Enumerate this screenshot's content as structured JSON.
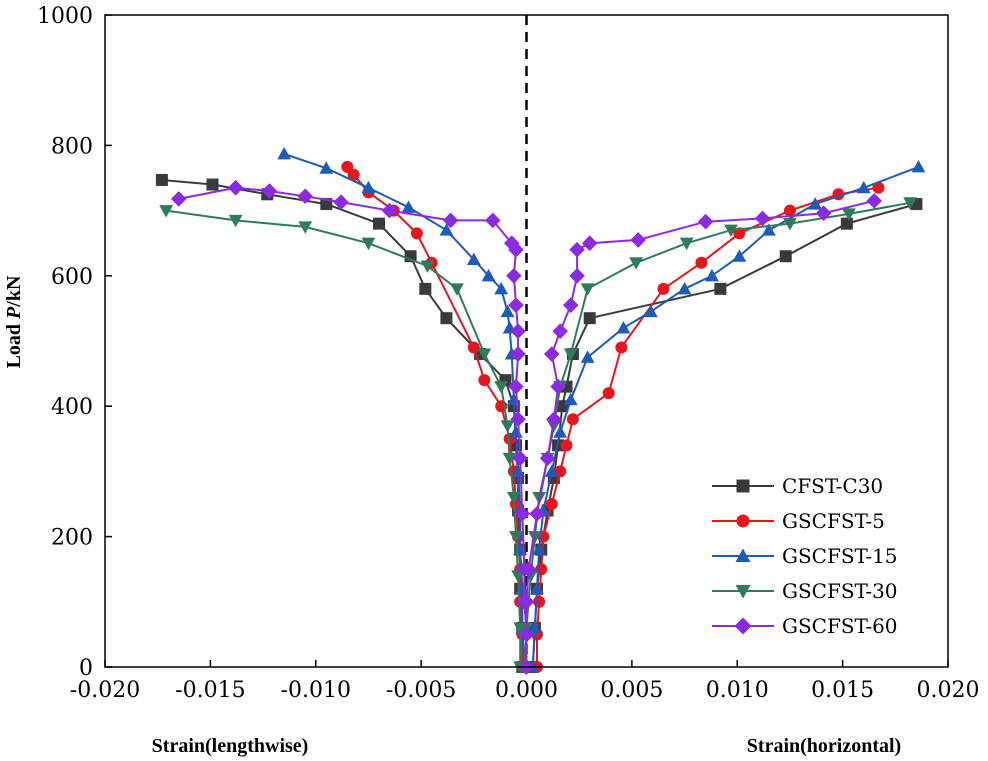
{
  "chart_data": {
    "type": "line",
    "title": "",
    "ylabel_prefix": "Load ",
    "ylabel_var": "P",
    "ylabel_suffix": "/kN",
    "xlabel_left": "Strain(lengthwise)",
    "xlabel_right": "Strain(horizontal)",
    "xlim": [
      -0.02,
      0.02
    ],
    "ylim": [
      0,
      1000
    ],
    "xticks": [
      -0.02,
      -0.015,
      -0.01,
      -0.005,
      0.0,
      0.005,
      0.01,
      0.015,
      0.02
    ],
    "xtick_labels": [
      "-0.020",
      "-0.015",
      "-0.010",
      "-0.005",
      "0.000",
      "0.005",
      "0.010",
      "0.015",
      "0.020"
    ],
    "yticks": [
      0,
      200,
      400,
      600,
      800,
      1000
    ],
    "ytick_labels": [
      "0",
      "200",
      "400",
      "600",
      "800",
      "1000"
    ],
    "reference_line": {
      "x": 0,
      "style": "dashed"
    },
    "legend_position": "bottom-right",
    "series": [
      {
        "name": "CFST-C30",
        "color": "#3a3a3a",
        "marker": "square",
        "left": [
          [
            -0.0002,
            0
          ],
          [
            -0.0002,
            60
          ],
          [
            -0.0003,
            120
          ],
          [
            -0.0003,
            180
          ],
          [
            -0.0004,
            240
          ],
          [
            -0.0004,
            290
          ],
          [
            -0.0005,
            340
          ],
          [
            -0.0006,
            400
          ],
          [
            -0.001,
            440
          ],
          [
            -0.0022,
            480
          ],
          [
            -0.0038,
            535
          ],
          [
            -0.0048,
            580
          ],
          [
            -0.0055,
            630
          ],
          [
            -0.007,
            680
          ],
          [
            -0.0095,
            710
          ],
          [
            -0.0123,
            725
          ],
          [
            -0.0149,
            740
          ],
          [
            -0.0173,
            747
          ]
        ],
        "right": [
          [
            0.0003,
            0
          ],
          [
            0.0004,
            60
          ],
          [
            0.0005,
            120
          ],
          [
            0.0007,
            180
          ],
          [
            0.001,
            240
          ],
          [
            0.0013,
            290
          ],
          [
            0.0015,
            340
          ],
          [
            0.0017,
            400
          ],
          [
            0.0019,
            430
          ],
          [
            0.0022,
            480
          ],
          [
            0.003,
            535
          ],
          [
            0.0092,
            580
          ],
          [
            0.0123,
            630
          ],
          [
            0.0152,
            680
          ],
          [
            0.0185,
            710
          ]
        ]
      },
      {
        "name": "GSCFST-5",
        "color": "#e8141e",
        "marker": "circle",
        "left": [
          [
            -0.0002,
            0
          ],
          [
            -0.0002,
            50
          ],
          [
            -0.0003,
            100
          ],
          [
            -0.0003,
            150
          ],
          [
            -0.0004,
            200
          ],
          [
            -0.0005,
            250
          ],
          [
            -0.0006,
            300
          ],
          [
            -0.0008,
            350
          ],
          [
            -0.0012,
            400
          ],
          [
            -0.002,
            440
          ],
          [
            -0.0025,
            490
          ],
          [
            -0.0045,
            620
          ],
          [
            -0.0052,
            665
          ],
          [
            -0.0063,
            700
          ],
          [
            -0.0075,
            728
          ],
          [
            -0.0082,
            755
          ],
          [
            -0.0085,
            767
          ]
        ],
        "right": [
          [
            0.0005,
            0
          ],
          [
            0.0005,
            50
          ],
          [
            0.0006,
            100
          ],
          [
            0.0007,
            150
          ],
          [
            0.0008,
            200
          ],
          [
            0.0012,
            250
          ],
          [
            0.0016,
            300
          ],
          [
            0.0019,
            340
          ],
          [
            0.0022,
            380
          ],
          [
            0.0039,
            420
          ],
          [
            0.0045,
            490
          ],
          [
            0.0065,
            580
          ],
          [
            0.0083,
            620
          ],
          [
            0.0101,
            665
          ],
          [
            0.0125,
            700
          ],
          [
            0.0148,
            725
          ],
          [
            0.0167,
            735
          ]
        ]
      },
      {
        "name": "GSCFST-15",
        "color": "#1e5ab8",
        "marker": "triangle",
        "left": [
          [
            -0.0001,
            0
          ],
          [
            -0.0002,
            60
          ],
          [
            -0.0002,
            120
          ],
          [
            -0.0003,
            180
          ],
          [
            -0.0003,
            240
          ],
          [
            -0.0004,
            300
          ],
          [
            -0.0005,
            360
          ],
          [
            -0.0006,
            410
          ],
          [
            -0.0007,
            480
          ],
          [
            -0.0008,
            520
          ],
          [
            -0.0009,
            545
          ],
          [
            -0.0012,
            580
          ],
          [
            -0.0018,
            600
          ],
          [
            -0.0025,
            625
          ],
          [
            -0.0038,
            670
          ],
          [
            -0.0056,
            705
          ],
          [
            -0.0075,
            735
          ],
          [
            -0.0095,
            765
          ],
          [
            -0.0115,
            787
          ]
        ],
        "right": [
          [
            0.0003,
            0
          ],
          [
            0.0004,
            60
          ],
          [
            0.0005,
            120
          ],
          [
            0.0006,
            180
          ],
          [
            0.0008,
            240
          ],
          [
            0.0012,
            300
          ],
          [
            0.0016,
            360
          ],
          [
            0.0021,
            410
          ],
          [
            0.0029,
            475
          ],
          [
            0.0046,
            520
          ],
          [
            0.0059,
            545
          ],
          [
            0.0075,
            580
          ],
          [
            0.0088,
            600
          ],
          [
            0.0101,
            630
          ],
          [
            0.0115,
            670
          ],
          [
            0.0137,
            710
          ],
          [
            0.016,
            735
          ],
          [
            0.0186,
            767
          ]
        ]
      },
      {
        "name": "GSCFST-30",
        "color": "#2f7a5a",
        "marker": "triangle-down",
        "left": [
          [
            -0.0003,
            0
          ],
          [
            -0.0003,
            60
          ],
          [
            -0.0004,
            140
          ],
          [
            -0.0005,
            200
          ],
          [
            -0.0006,
            260
          ],
          [
            -0.0008,
            320
          ],
          [
            -0.0009,
            370
          ],
          [
            -0.0012,
            430
          ],
          [
            -0.002,
            480
          ],
          [
            -0.0033,
            580
          ],
          [
            -0.0047,
            615
          ],
          [
            -0.0075,
            650
          ],
          [
            -0.0105,
            675
          ],
          [
            -0.0138,
            685
          ],
          [
            -0.0171,
            700
          ]
        ],
        "right": [
          [
            -0.0001,
            0
          ],
          [
            0.0,
            60
          ],
          [
            0.0002,
            140
          ],
          [
            0.0004,
            200
          ],
          [
            0.0006,
            260
          ],
          [
            0.001,
            320
          ],
          [
            0.0013,
            370
          ],
          [
            0.0016,
            430
          ],
          [
            0.0021,
            480
          ],
          [
            0.0029,
            580
          ],
          [
            0.0052,
            620
          ],
          [
            0.0076,
            650
          ],
          [
            0.0097,
            670
          ],
          [
            0.0125,
            680
          ],
          [
            0.0153,
            695
          ],
          [
            0.0182,
            712
          ]
        ]
      },
      {
        "name": "GSCFST-60",
        "color": "#8a2be2",
        "marker": "diamond",
        "left": [
          [
            0.0,
            0
          ],
          [
            0.0,
            50
          ],
          [
            -0.0001,
            100
          ],
          [
            -0.0001,
            150
          ],
          [
            -0.0002,
            235
          ],
          [
            -0.0003,
            320
          ],
          [
            -0.0004,
            380
          ],
          [
            -0.0005,
            430
          ],
          [
            -0.0004,
            480
          ],
          [
            -0.0004,
            515
          ],
          [
            -0.0005,
            555
          ],
          [
            -0.0006,
            600
          ],
          [
            -0.0005,
            640
          ],
          [
            -0.0007,
            650
          ],
          [
            -0.0016,
            685
          ],
          [
            -0.0036,
            685
          ],
          [
            -0.0065,
            700
          ],
          [
            -0.0088,
            713
          ],
          [
            -0.0105,
            722
          ],
          [
            -0.0122,
            730
          ],
          [
            -0.0138,
            735
          ],
          [
            -0.0165,
            718
          ]
        ],
        "right": [
          [
            0.0,
            0
          ],
          [
            0.0,
            50
          ],
          [
            0.0,
            100
          ],
          [
            0.0001,
            150
          ],
          [
            0.0005,
            235
          ],
          [
            0.001,
            320
          ],
          [
            0.0013,
            380
          ],
          [
            0.0015,
            430
          ],
          [
            0.0012,
            480
          ],
          [
            0.0016,
            515
          ],
          [
            0.0021,
            555
          ],
          [
            0.0024,
            600
          ],
          [
            0.0024,
            640
          ],
          [
            0.003,
            650
          ],
          [
            0.0053,
            655
          ],
          [
            0.0085,
            683
          ],
          [
            0.0112,
            688
          ],
          [
            0.0141,
            696
          ],
          [
            0.0165,
            715
          ]
        ]
      }
    ]
  }
}
